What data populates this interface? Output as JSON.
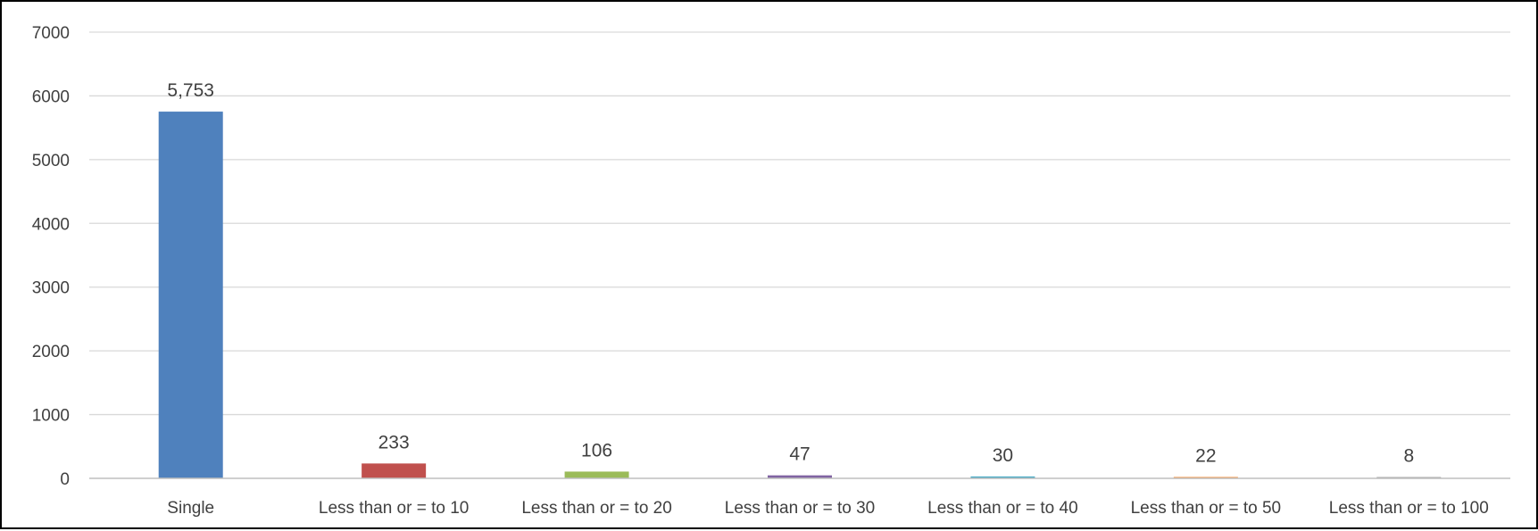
{
  "chart_data": {
    "type": "bar",
    "title": "",
    "xlabel": "",
    "ylabel": "",
    "categories": [
      "Single",
      "Less than or = to 10",
      "Less than or = to 20",
      "Less than or = to 30",
      "Less than or = to 40",
      "Less than or = to 50",
      "Less than or = to 100"
    ],
    "values": [
      5753,
      233,
      106,
      47,
      30,
      22,
      8
    ],
    "data_labels": [
      "5,753",
      "233",
      "106",
      "47",
      "30",
      "22",
      "8"
    ],
    "colors": [
      "#4F81BD",
      "#C0504D",
      "#9BBB59",
      "#8064A2",
      "#4BACC6",
      "#F79646",
      "#A5A5A5"
    ],
    "ylim": [
      0,
      7000
    ],
    "yticks": [
      0,
      1000,
      2000,
      3000,
      4000,
      5000,
      6000,
      7000
    ],
    "grid": true,
    "gridline_color": "#D9D9D9",
    "axis_color": "#BFBFBF",
    "legend": "none"
  }
}
